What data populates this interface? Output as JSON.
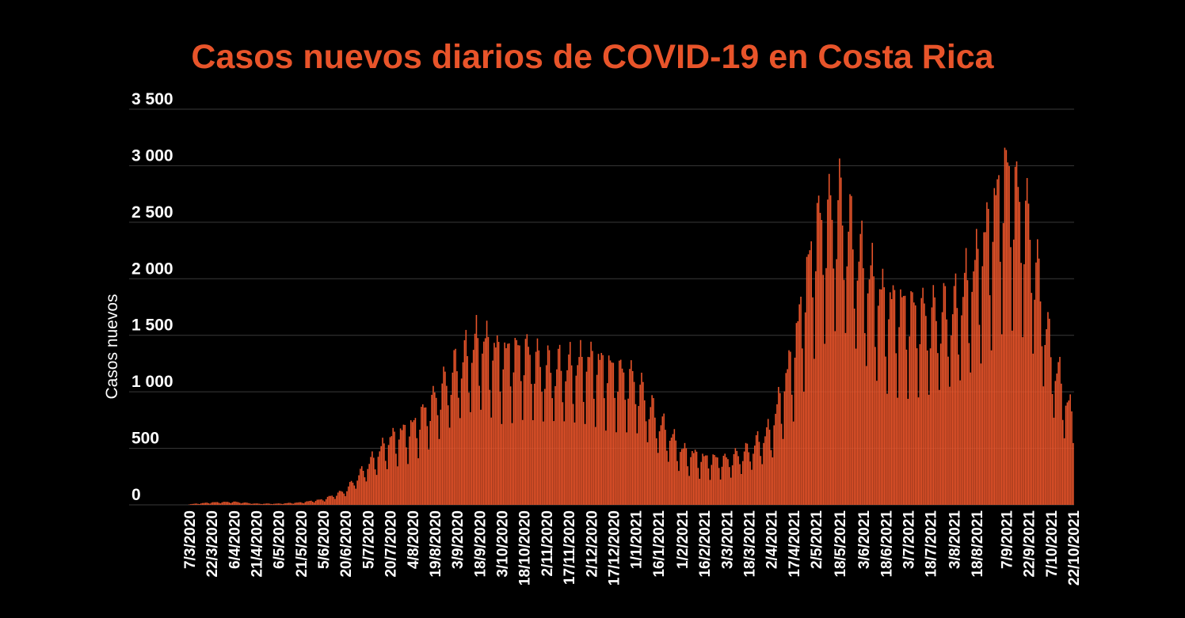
{
  "chart_data": {
    "type": "bar",
    "title": "Casos nuevos diarios de COVID-19 en Costa Rica",
    "xlabel": "",
    "ylabel": "Casos nuevos",
    "ylim": [
      0,
      3500
    ],
    "y_ticks": [
      0,
      500,
      1000,
      1500,
      2000,
      2500,
      3000,
      3500
    ],
    "y_tick_labels": [
      "0",
      "500",
      "1 000",
      "1 500",
      "2 000",
      "2 500",
      "3 000",
      "3 500"
    ],
    "x_tick_labels": [
      "7/3/2020",
      "22/3/2020",
      "6/4/2020",
      "21/4/2020",
      "6/5/2020",
      "21/5/2020",
      "5/6/2020",
      "20/6/2020",
      "5/7/2020",
      "20/7/2020",
      "4/8/2020",
      "19/8/2020",
      "3/9/2020",
      "18/9/2020",
      "3/10/2020",
      "18/10/2020",
      "2/11/2020",
      "17/11/2020",
      "2/12/2020",
      "17/12/2020",
      "1/1/2021",
      "16/1/2021",
      "1/2/2021",
      "16/2/2021",
      "3/3/2021",
      "18/3/2021",
      "2/4/2021",
      "17/4/2021",
      "2/5/2021",
      "18/5/2021",
      "3/6/2021",
      "18/6/2021",
      "3/7/2021",
      "18/7/2021",
      "3/8/2021",
      "18/8/2021",
      "7/9/2021",
      "22/9/2021",
      "7/10/2021",
      "22/10/2021"
    ],
    "x_start": "2020-03-07",
    "x_end": "2021-10-22",
    "bar_color": "#e8542a",
    "background": "#000000",
    "grid": true,
    "anchors": [
      [
        "2020-03-07",
        5
      ],
      [
        "2020-03-22",
        20
      ],
      [
        "2020-04-06",
        25
      ],
      [
        "2020-04-21",
        10
      ],
      [
        "2020-05-06",
        10
      ],
      [
        "2020-05-21",
        20
      ],
      [
        "2020-06-05",
        45
      ],
      [
        "2020-06-20",
        120
      ],
      [
        "2020-07-05",
        330
      ],
      [
        "2020-07-20",
        540
      ],
      [
        "2020-08-04",
        640
      ],
      [
        "2020-08-19",
        870
      ],
      [
        "2020-09-03",
        1140
      ],
      [
        "2020-09-18",
        1350
      ],
      [
        "2020-10-03",
        1220
      ],
      [
        "2020-10-18",
        1260
      ],
      [
        "2020-11-02",
        1130
      ],
      [
        "2020-11-17",
        1130
      ],
      [
        "2020-12-02",
        1180
      ],
      [
        "2020-12-17",
        1100
      ],
      [
        "2021-01-01",
        1020
      ],
      [
        "2021-01-16",
        700
      ],
      [
        "2021-02-01",
        450
      ],
      [
        "2021-02-16",
        380
      ],
      [
        "2021-03-03",
        370
      ],
      [
        "2021-03-18",
        450
      ],
      [
        "2021-04-02",
        620
      ],
      [
        "2021-04-17",
        1250
      ],
      [
        "2021-05-02",
        2250
      ],
      [
        "2021-05-18",
        2450
      ],
      [
        "2021-06-03",
        1950
      ],
      [
        "2021-06-18",
        1650
      ],
      [
        "2021-07-03",
        1600
      ],
      [
        "2021-07-18",
        1550
      ],
      [
        "2021-08-03",
        1600
      ],
      [
        "2021-08-18",
        1950
      ],
      [
        "2021-09-07",
        2700
      ],
      [
        "2021-09-22",
        2300
      ],
      [
        "2021-10-07",
        1250
      ],
      [
        "2021-10-22",
        700
      ]
    ]
  }
}
